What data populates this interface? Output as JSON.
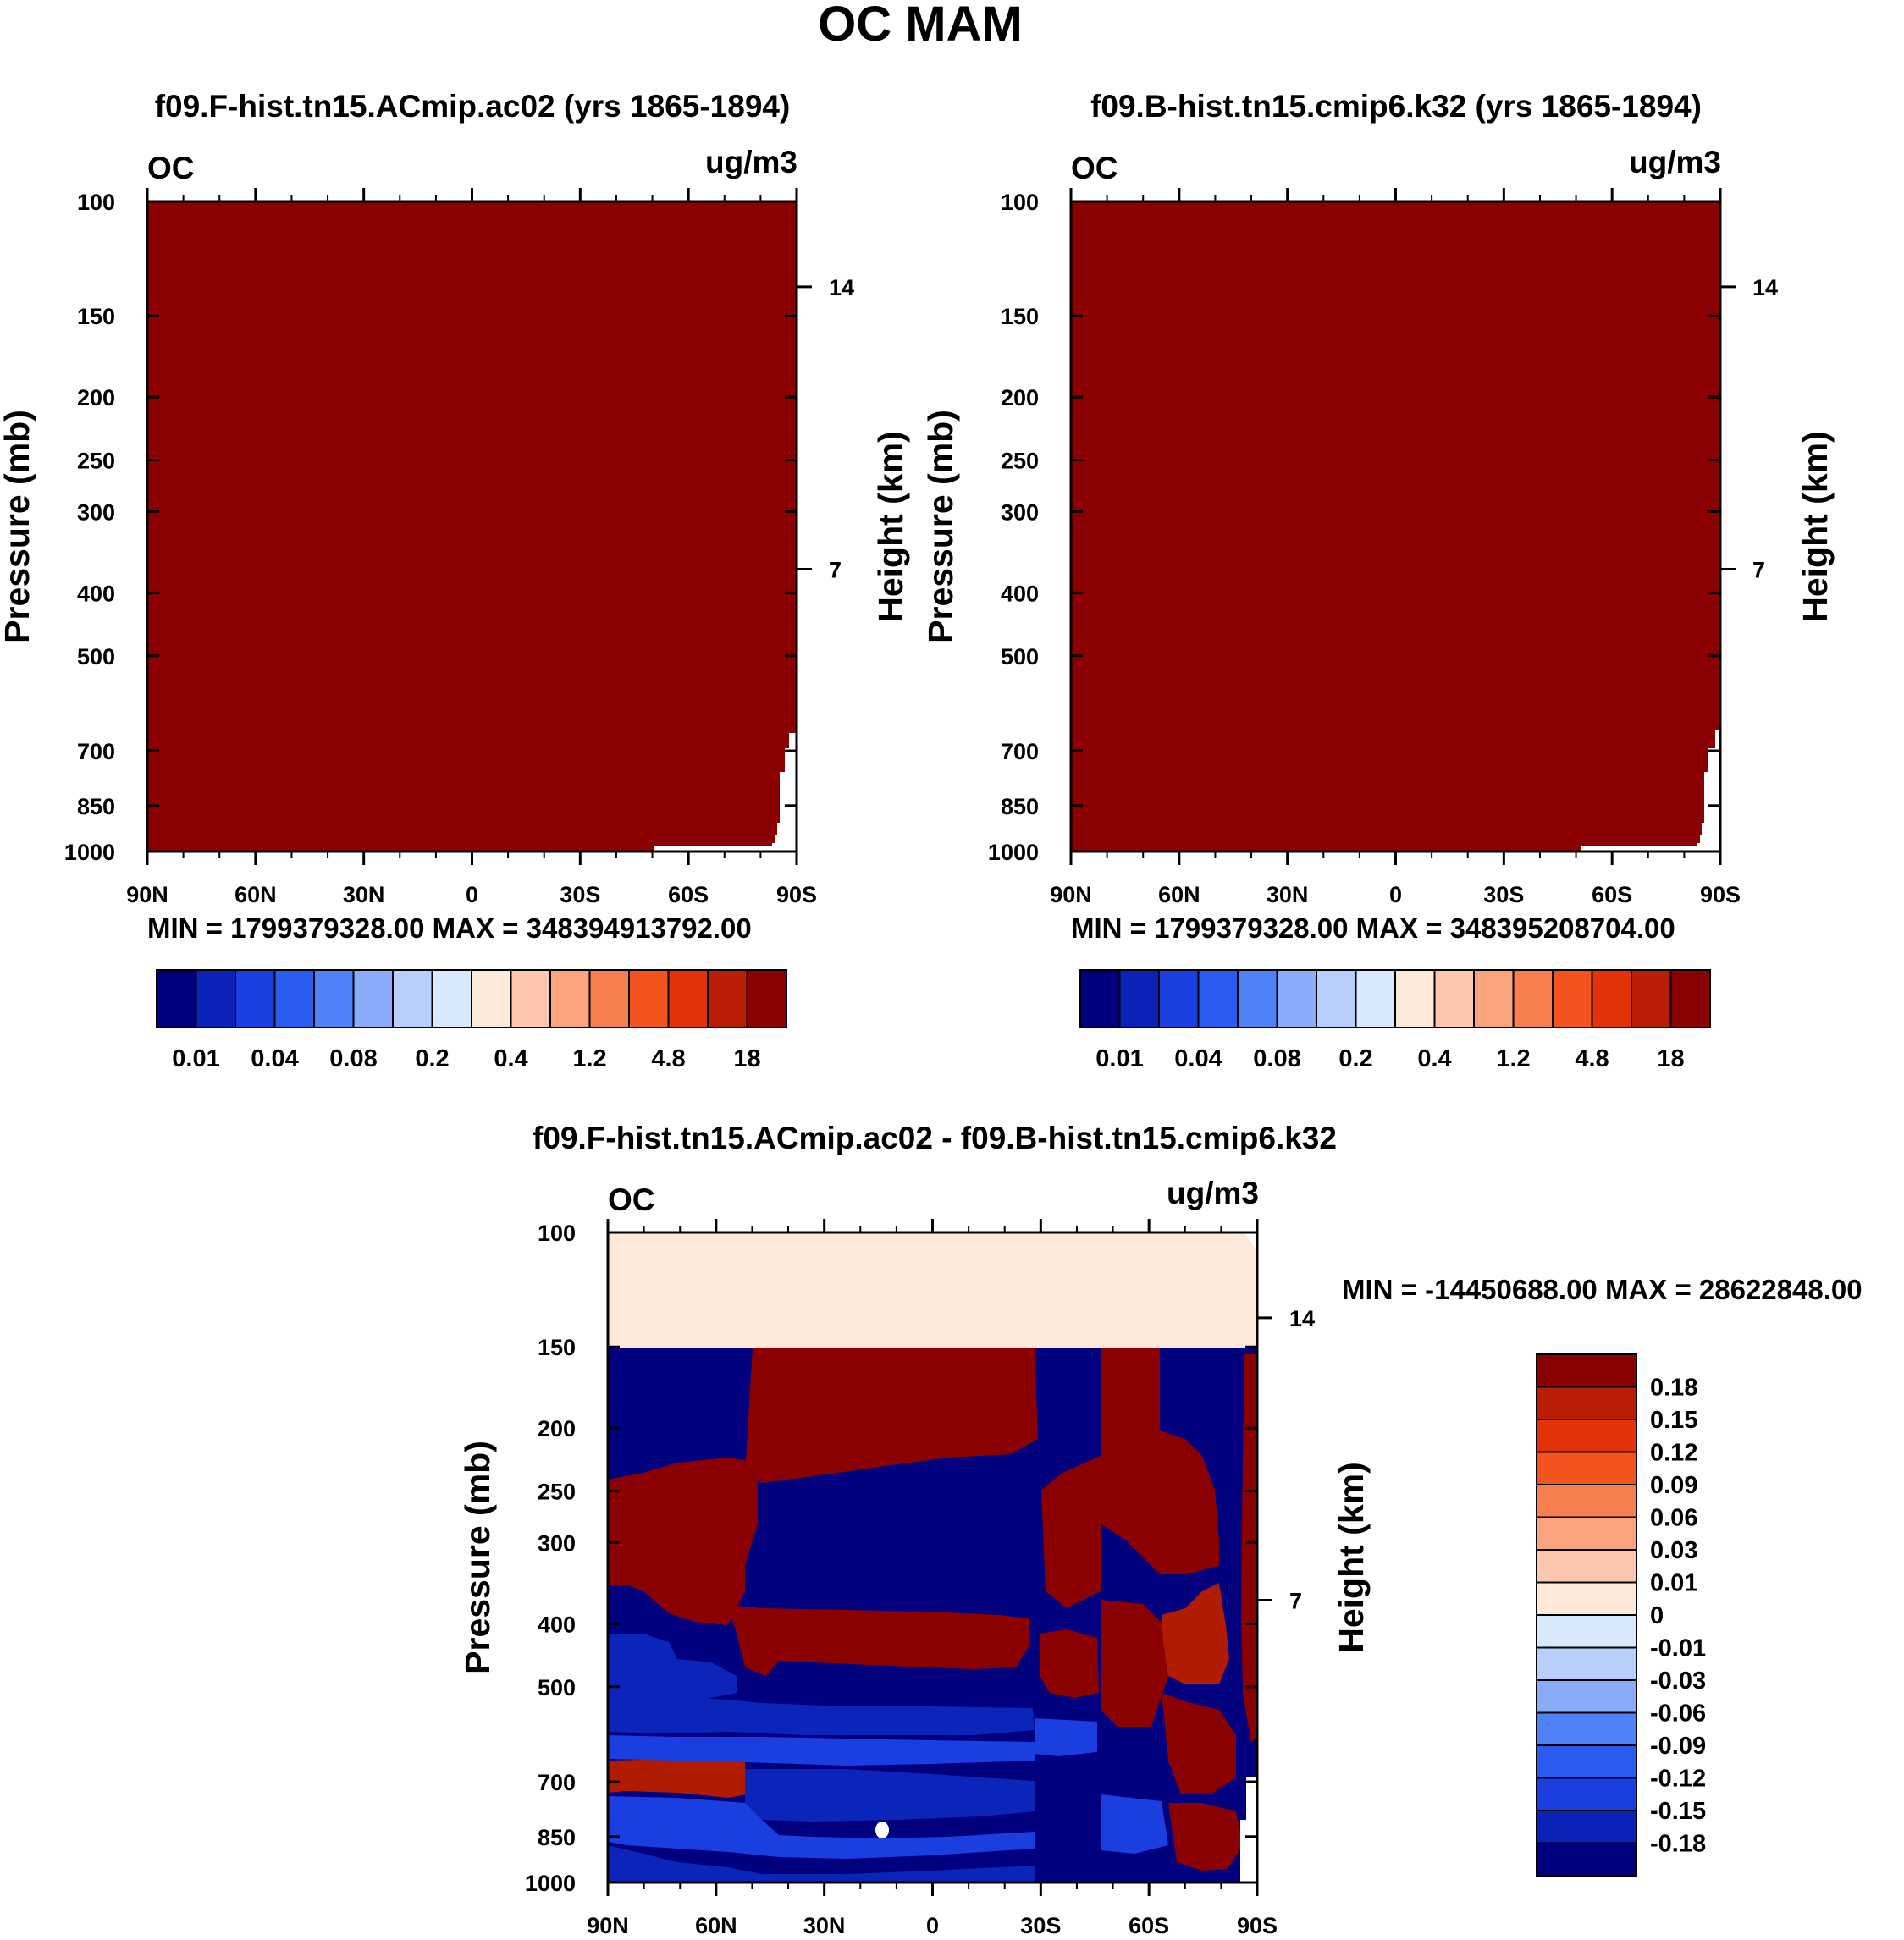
{
  "figure": {
    "title": "OC MAM"
  },
  "colors": {
    "dark_red": "#8b0000",
    "light": "#fde9d9",
    "dark_blue": "#00007f",
    "mid_blue": "#0b24b9",
    "blue": "#1a3ee0",
    "red2": "#b11b00"
  },
  "chart_data": [
    {
      "type": "heatmap",
      "id": "panel-1",
      "title": "f09.F-hist.tn15.ACmip.ac02 (yrs 1865-1894)",
      "left_label": "OC",
      "right_label": "ug/m3",
      "xlabel": "",
      "ylabel": "Pressure (mb)",
      "ylabel_right": "Height (km)",
      "x_ticks": [
        "90N",
        "60N",
        "30N",
        "0",
        "30S",
        "60S",
        "90S"
      ],
      "y_ticks": [
        "100",
        "150",
        "200",
        "250",
        "300",
        "400",
        "500",
        "700",
        "850",
        "1000"
      ],
      "y_tick_values": [
        100,
        150,
        200,
        250,
        300,
        400,
        500,
        700,
        850,
        1000
      ],
      "y_right_ticks": [
        "14",
        "7"
      ],
      "y_right_values": [
        14,
        7
      ],
      "x_range": [
        90,
        -90
      ],
      "y_range": [
        100,
        1000
      ],
      "stats": "MIN = 1799379328.00   MAX = 348394913792.00",
      "colorbar": {
        "colors": [
          "#00007f",
          "#0a22b7",
          "#1a3ee0",
          "#2a5cf2",
          "#4f82f7",
          "#8aabf8",
          "#b9cffb",
          "#d9e9fd",
          "#fde9d9",
          "#fcc7ad",
          "#f9a47e",
          "#f77e4d",
          "#f3541d",
          "#e2330a",
          "#b91e05",
          "#8b0000"
        ],
        "labels": [
          "0.01",
          "0.04",
          "0.08",
          "0.2",
          "0.4",
          "1.2",
          "4.8",
          "18"
        ]
      },
      "dominant_field": "all values above top level (18)"
    },
    {
      "type": "heatmap",
      "id": "panel-2",
      "title": "f09.B-hist.tn15.cmip6.k32 (yrs 1865-1894)",
      "left_label": "OC",
      "right_label": "ug/m3",
      "xlabel": "",
      "ylabel": "Pressure (mb)",
      "ylabel_right": "Height (km)",
      "x_ticks": [
        "90N",
        "60N",
        "30N",
        "0",
        "30S",
        "60S",
        "90S"
      ],
      "y_ticks": [
        "100",
        "150",
        "200",
        "250",
        "300",
        "400",
        "500",
        "700",
        "850",
        "1000"
      ],
      "y_tick_values": [
        100,
        150,
        200,
        250,
        300,
        400,
        500,
        700,
        850,
        1000
      ],
      "y_right_ticks": [
        "14",
        "7"
      ],
      "y_right_values": [
        14,
        7
      ],
      "x_range": [
        90,
        -90
      ],
      "y_range": [
        100,
        1000
      ],
      "stats": "MIN = 1799379328.00   MAX = 348395208704.00",
      "colorbar": {
        "colors": [
          "#00007f",
          "#0a22b7",
          "#1a3ee0",
          "#2a5cf2",
          "#4f82f7",
          "#8aabf8",
          "#b9cffb",
          "#d9e9fd",
          "#fde9d9",
          "#fcc7ad",
          "#f9a47e",
          "#f77e4d",
          "#f3541d",
          "#e2330a",
          "#b91e05",
          "#8b0000"
        ],
        "labels": [
          "0.01",
          "0.04",
          "0.08",
          "0.2",
          "0.4",
          "1.2",
          "4.8",
          "18"
        ]
      },
      "dominant_field": "all values above top level (18)"
    },
    {
      "type": "heatmap",
      "id": "panel-diff",
      "title": "f09.F-hist.tn15.ACmip.ac02 - f09.B-hist.tn15.cmip6.k32",
      "left_label": "OC",
      "right_label": "ug/m3",
      "xlabel": "",
      "ylabel": "Pressure (mb)",
      "ylabel_right": "Height (km)",
      "x_ticks": [
        "90N",
        "60N",
        "30N",
        "0",
        "30S",
        "60S",
        "90S"
      ],
      "y_ticks": [
        "100",
        "150",
        "200",
        "250",
        "300",
        "400",
        "500",
        "700",
        "850",
        "1000"
      ],
      "y_tick_values": [
        100,
        150,
        200,
        250,
        300,
        400,
        500,
        700,
        850,
        1000
      ],
      "y_right_ticks": [
        "14",
        "7"
      ],
      "y_right_values": [
        14,
        7
      ],
      "x_range": [
        90,
        -90
      ],
      "y_range": [
        100,
        1000
      ],
      "stats": "MIN = -14450688.00   MAX = 28622848.00",
      "colorbar": {
        "orientation": "vertical",
        "colors_top_to_bottom": [
          "#8b0000",
          "#b91e05",
          "#e2330a",
          "#f3541d",
          "#f77e4d",
          "#f9a47e",
          "#fcc7ad",
          "#fde9d9",
          "#d9e9fd",
          "#b9cffb",
          "#8aabf8",
          "#4f82f7",
          "#2a5cf2",
          "#1a3ee0",
          "#0a22b7",
          "#00007f"
        ],
        "labels_top_to_bottom": [
          "0.18",
          "0.15",
          "0.12",
          "0.09",
          "0.06",
          "0.03",
          "0.01",
          "0",
          "-0.01",
          "-0.03",
          "-0.06",
          "-0.09",
          "-0.12",
          "-0.15",
          "-0.18"
        ]
      }
    }
  ]
}
